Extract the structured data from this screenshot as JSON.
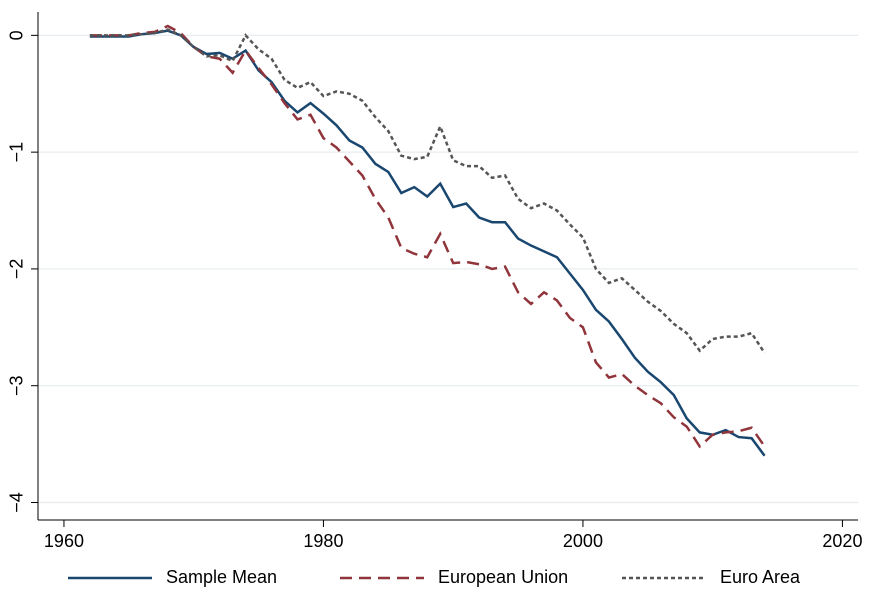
{
  "chart_data": {
    "type": "line",
    "x": [
      1962,
      1963,
      1964,
      1965,
      1966,
      1967,
      1968,
      1969,
      1970,
      1971,
      1972,
      1973,
      1974,
      1975,
      1976,
      1977,
      1978,
      1979,
      1980,
      1981,
      1982,
      1983,
      1984,
      1985,
      1986,
      1987,
      1988,
      1989,
      1990,
      1991,
      1992,
      1993,
      1994,
      1995,
      1996,
      1997,
      1998,
      1999,
      2000,
      2001,
      2002,
      2003,
      2004,
      2005,
      2006,
      2007,
      2008,
      2009,
      2010,
      2011,
      2012,
      2013,
      2014
    ],
    "series": [
      {
        "name": "Sample Mean",
        "color": "#1a476f",
        "dash": "solid",
        "values": [
          -0.01,
          -0.01,
          -0.01,
          -0.01,
          0.01,
          0.02,
          0.04,
          0.0,
          -0.1,
          -0.16,
          -0.15,
          -0.2,
          -0.13,
          -0.3,
          -0.4,
          -0.56,
          -0.66,
          -0.58,
          -0.67,
          -0.77,
          -0.9,
          -0.96,
          -1.1,
          -1.17,
          -1.35,
          -1.3,
          -1.38,
          -1.27,
          -1.47,
          -1.44,
          -1.56,
          -1.6,
          -1.6,
          -1.74,
          -1.8,
          -1.85,
          -1.9,
          -2.04,
          -2.18,
          -2.35,
          -2.45,
          -2.6,
          -2.76,
          -2.88,
          -2.97,
          -3.08,
          -3.28,
          -3.4,
          -3.42,
          -3.38,
          -3.44,
          -3.45,
          -3.6
        ]
      },
      {
        "name": "European Union",
        "color": "#90353b",
        "dash": "dashed",
        "values": [
          0,
          0,
          0,
          0,
          0.02,
          0.03,
          0.08,
          0.02,
          -0.1,
          -0.18,
          -0.2,
          -0.32,
          -0.13,
          -0.28,
          -0.42,
          -0.58,
          -0.72,
          -0.68,
          -0.88,
          -0.96,
          -1.08,
          -1.2,
          -1.4,
          -1.56,
          -1.82,
          -1.87,
          -1.9,
          -1.7,
          -1.95,
          -1.94,
          -1.96,
          -2.0,
          -1.98,
          -2.2,
          -2.3,
          -2.2,
          -2.27,
          -2.42,
          -2.5,
          -2.8,
          -2.93,
          -2.9,
          -3.0,
          -3.08,
          -3.15,
          -3.27,
          -3.35,
          -3.52,
          -3.42,
          -3.4,
          -3.39,
          -3.36,
          -3.52
        ]
      },
      {
        "name": "Euro Area",
        "color": "#555555",
        "dash": "dotted",
        "values": [
          0,
          0,
          0,
          0,
          0.01,
          0.02,
          0.05,
          0.0,
          -0.1,
          -0.18,
          -0.17,
          -0.22,
          0.0,
          -0.12,
          -0.2,
          -0.38,
          -0.45,
          -0.4,
          -0.52,
          -0.48,
          -0.5,
          -0.56,
          -0.7,
          -0.82,
          -1.03,
          -1.06,
          -1.04,
          -0.78,
          -1.07,
          -1.12,
          -1.12,
          -1.22,
          -1.2,
          -1.4,
          -1.48,
          -1.44,
          -1.5,
          -1.62,
          -1.73,
          -2.0,
          -2.12,
          -2.08,
          -2.18,
          -2.28,
          -2.36,
          -2.47,
          -2.55,
          -2.7,
          -2.6,
          -2.58,
          -2.58,
          -2.55,
          -2.72
        ]
      }
    ],
    "xlim": [
      1958,
      2021.2
    ],
    "xticks": [
      1960,
      1980,
      2000,
      2020
    ],
    "ylim": [
      -4.15,
      0.2
    ],
    "yticks": [
      0,
      {
        "value": -1,
        "label": "−1"
      },
      {
        "value": -2,
        "label": "−2"
      },
      {
        "value": -3,
        "label": "−3"
      },
      {
        "value": -4,
        "label": "−4"
      }
    ],
    "grid": true,
    "legend": "bottom"
  }
}
